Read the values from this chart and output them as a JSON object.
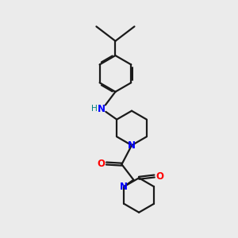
{
  "bg_color": "#ebebeb",
  "bond_color": "#1a1a1a",
  "n_color": "#0000ff",
  "o_color": "#ff0000",
  "nh_h_color": "#008080",
  "line_width": 1.6,
  "font_size_atom": 8.5,
  "xlim": [
    1.0,
    9.0
  ],
  "ylim": [
    1.5,
    14.5
  ]
}
